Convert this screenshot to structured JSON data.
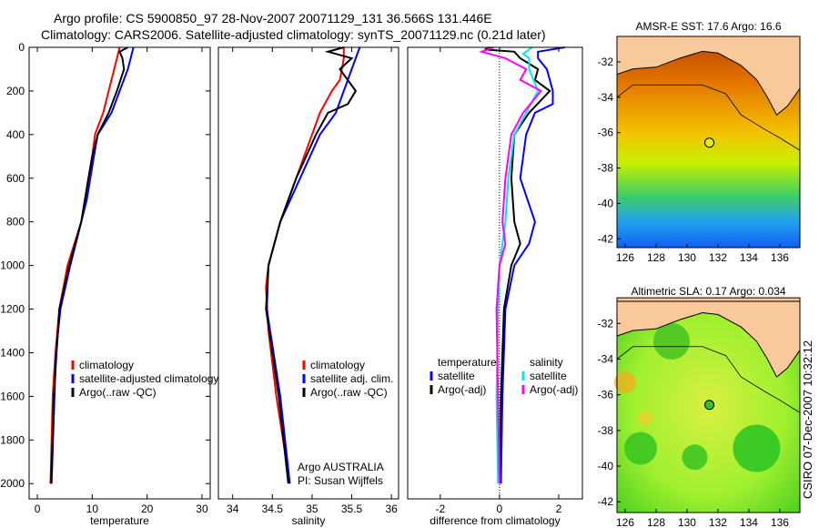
{
  "title_line1": "Argo profile: CS 5900850_97 28-Nov-2007 20071129_131 36.566S 131.446E",
  "title_line2": "Climatology: CARS2006. Satellite-adjusted climatology: synTS_20071129.nc (0.21d later)",
  "colors": {
    "red": "#ff0000",
    "blue": "#0000ff",
    "black": "#000000",
    "cyan": "#00e5ee",
    "magenta": "#ff00ff",
    "land": "#f9c89b"
  },
  "chart_data": [
    {
      "type": "line",
      "xlabel": "temperature",
      "ylabel": "",
      "xlim": [
        -1.5,
        31.5
      ],
      "ylim": [
        2070,
        0
      ],
      "xticks": [
        0,
        10,
        20,
        30
      ],
      "yticks": [
        0,
        200,
        400,
        600,
        800,
        1000,
        1200,
        1400,
        1600,
        1800,
        2000
      ],
      "legend": {
        "placement": "lower-right",
        "entries": [
          "climatology",
          "satellite-adjusted climatology",
          "Argo(..raw -QC)"
        ]
      },
      "series": [
        {
          "name": "climatology",
          "color": "red",
          "depth": [
            0,
            50,
            100,
            200,
            300,
            400,
            500,
            600,
            800,
            1000,
            1200,
            1400,
            1600,
            2000
          ],
          "values": [
            15,
            14.5,
            14,
            13,
            12,
            10.5,
            10,
            9.3,
            8,
            5.5,
            4,
            3.3,
            2.8,
            2.4
          ]
        },
        {
          "name": "satellite-adjusted climatology",
          "color": "blue",
          "depth": [
            0,
            50,
            100,
            200,
            300,
            400,
            500,
            700,
            900,
            1000,
            1200,
            1400,
            2000
          ],
          "values": [
            17.5,
            17,
            16.5,
            15,
            13.5,
            11,
            10.3,
            9,
            7,
            6,
            4.2,
            3.4,
            2.6
          ]
        },
        {
          "name": "Argo(..raw -QC)",
          "color": "black",
          "depth": [
            0,
            20,
            50,
            100,
            200,
            300,
            400,
            500,
            800,
            1000,
            1200,
            1600,
            2000
          ],
          "values": [
            16.5,
            15,
            15.5,
            15.8,
            14.5,
            13,
            11,
            10,
            8,
            5.8,
            4,
            3,
            2.5
          ]
        }
      ]
    },
    {
      "type": "line",
      "xlabel": "salinity",
      "ylabel": "",
      "xlim": [
        33.82,
        36.09
      ],
      "ylim": [
        2070,
        0
      ],
      "xticks": [
        34,
        34.5,
        35,
        35.5,
        36
      ],
      "yticks": [],
      "legend": {
        "placement": "lower-right",
        "entries": [
          "climatology",
          "satellite adj. clim.",
          "Argo(..raw -QC)"
        ]
      },
      "annotation": [
        "Argo AUSTRALIA",
        "PI: Susan Wijffels"
      ],
      "series": [
        {
          "name": "climatology",
          "color": "red",
          "depth": [
            0,
            50,
            150,
            200,
            300,
            400,
            600,
            800,
            1000,
            1100,
            1300,
            1600,
            2000
          ],
          "values": [
            35.4,
            35.4,
            35.35,
            35.25,
            35.1,
            35,
            34.8,
            34.6,
            34.45,
            34.42,
            34.45,
            34.55,
            34.72
          ]
        },
        {
          "name": "satellite adj. clim.",
          "color": "blue",
          "depth": [
            0,
            100,
            200,
            300,
            400,
            600,
            800,
            1000,
            1200,
            1600,
            2000
          ],
          "values": [
            35.6,
            35.5,
            35.4,
            35.3,
            35.1,
            34.85,
            34.6,
            34.45,
            34.43,
            34.6,
            34.72
          ]
        },
        {
          "name": "Argo(..raw -QC)",
          "color": "black",
          "depth": [
            0,
            20,
            50,
            100,
            200,
            260,
            300,
            400,
            600,
            800,
            1000,
            1200,
            1600,
            2000
          ],
          "values": [
            35.4,
            35.2,
            35.5,
            35.35,
            35.55,
            35.45,
            35.2,
            35.05,
            34.8,
            34.6,
            34.45,
            34.42,
            34.58,
            34.7
          ]
        }
      ]
    },
    {
      "type": "line",
      "xlabel": "difference from climatology",
      "ylabel": "",
      "xlim": [
        -3.1,
        2.8
      ],
      "ylim": [
        2070,
        0
      ],
      "xticks": [
        -2,
        0,
        2
      ],
      "yticks": [],
      "legend": {
        "placement": "center-bottom",
        "headers": [
          "temperature",
          "salinity"
        ],
        "entries": [
          "satellite",
          "Argo(-adj)",
          "satellite",
          "Argo(-adj)"
        ]
      },
      "series": [
        {
          "name": "temperature satellite",
          "color": "blue",
          "depth": [
            0,
            20,
            50,
            100,
            200,
            260,
            300,
            400,
            600,
            800,
            900,
            1000,
            1200,
            1600,
            2000
          ],
          "values": [
            2.2,
            1.3,
            1.3,
            1.6,
            1.8,
            1.8,
            1.2,
            0.9,
            0.7,
            1.2,
            1.0,
            0.5,
            0.2,
            0.1,
            0.05
          ]
        },
        {
          "name": "temperature Argo(-adj)",
          "color": "black",
          "depth": [
            0,
            10,
            20,
            50,
            100,
            150,
            200,
            300,
            400,
            600,
            800,
            900,
            1000,
            1200,
            1600,
            2000
          ],
          "values": [
            -0.3,
            -0.5,
            0.5,
            0.7,
            1.3,
            1.2,
            1.7,
            1.0,
            0.5,
            0.4,
            0.5,
            0.7,
            0.4,
            0.15,
            0.05,
            0
          ]
        },
        {
          "name": "salinity satellite",
          "color": "cyan",
          "depth": [
            0,
            30,
            50,
            100,
            200,
            300,
            400,
            600,
            800,
            1000,
            1200,
            1600,
            2000
          ],
          "values": [
            1.1,
            0.8,
            1.0,
            1.0,
            1.3,
            0.9,
            0.5,
            0.3,
            0.2,
            0,
            -0.05,
            -0.1,
            -0.05
          ]
        },
        {
          "name": "salinity Argo(-adj)",
          "color": "magenta",
          "depth": [
            0,
            20,
            50,
            100,
            150,
            200,
            300,
            400,
            600,
            800,
            900,
            1000,
            1200,
            2000
          ],
          "values": [
            -0.2,
            -0.6,
            0.2,
            0.9,
            0.7,
            1.4,
            0.8,
            0.4,
            0.2,
            0.1,
            0.2,
            0,
            -0.1,
            0
          ]
        }
      ]
    },
    {
      "type": "heatmap",
      "title": "AMSR-E SST: 17.6 Argo: 16.6",
      "xlim": [
        125.47,
        137.3
      ],
      "ylim": [
        -42.5,
        -30.56
      ],
      "xticks": [
        126,
        128,
        130,
        132,
        134,
        136
      ],
      "yticks": [
        -32,
        -34,
        -36,
        -38,
        -40,
        -42
      ],
      "argo_point": [
        131.446,
        -36.566
      ]
    },
    {
      "type": "heatmap",
      "title": "Altimetric SLA: 0.17 Argo: 0.034",
      "xlim": [
        125.47,
        137.3
      ],
      "ylim": [
        -42.6,
        -30.76
      ],
      "xticks": [
        126,
        128,
        130,
        132,
        134,
        136
      ],
      "yticks": [
        -32,
        -34,
        -36,
        -38,
        -40,
        -42
      ],
      "argo_point": [
        131.446,
        -36.566
      ]
    }
  ],
  "side_label": "CSIRO 07-Dec-2007 10:32:12"
}
